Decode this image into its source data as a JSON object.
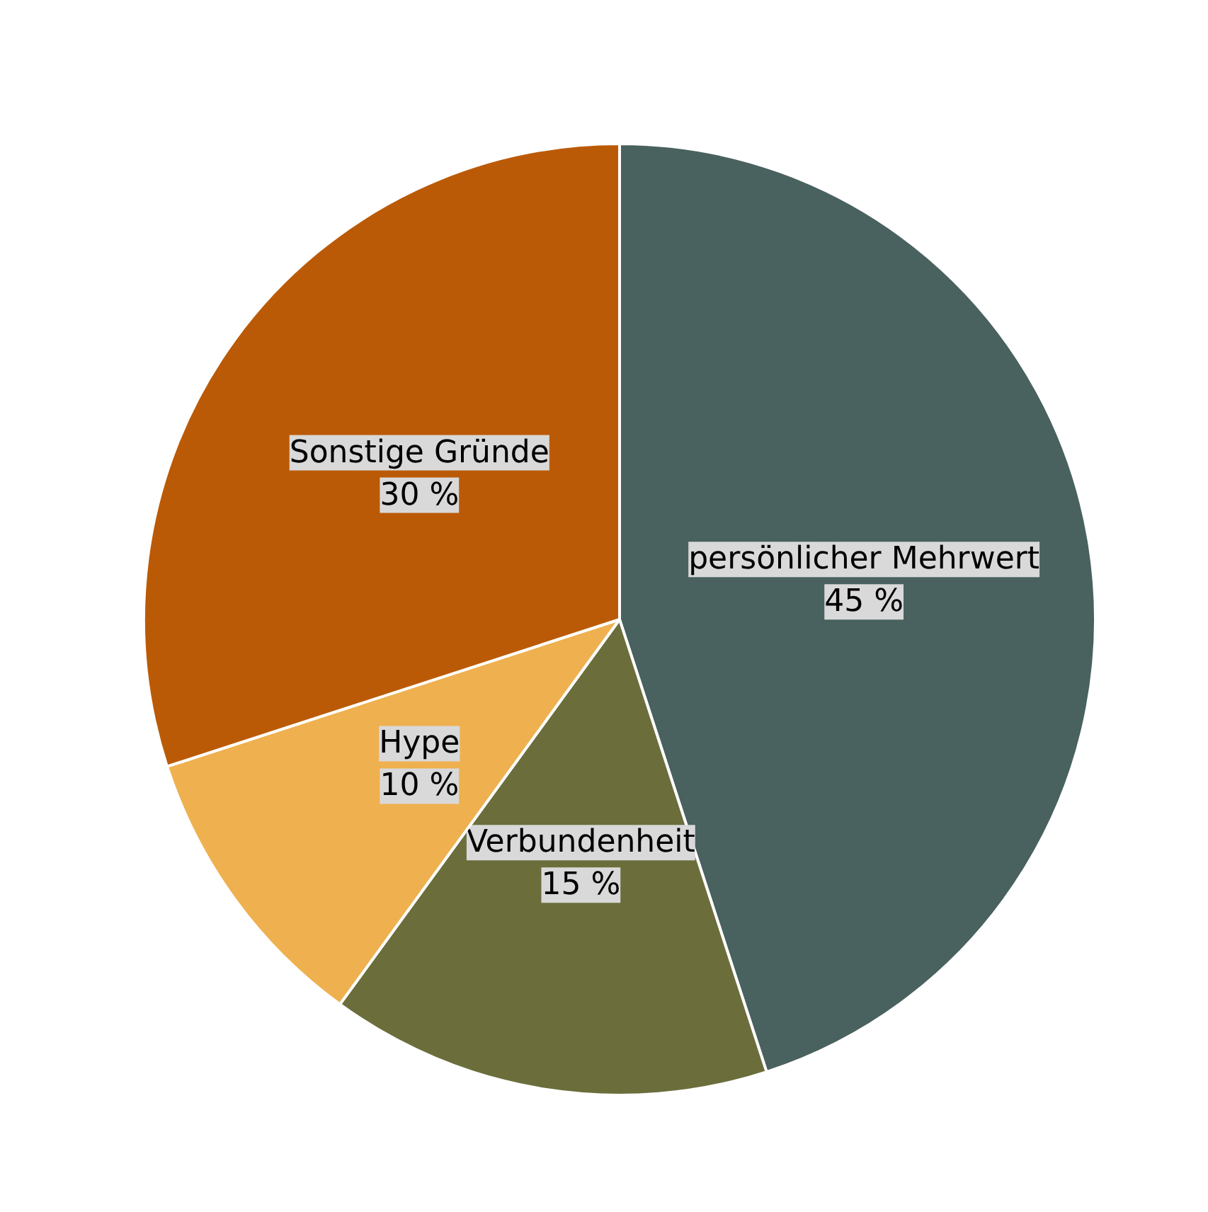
{
  "chart_data": {
    "type": "pie",
    "categories": [
      "persönlicher Mehrwert",
      "Verbundenheit",
      "Hype",
      "Sonstige Gründe"
    ],
    "values": [
      45,
      15,
      10,
      30
    ],
    "colors": [
      "#49615f",
      "#6b6e3b",
      "#efb04f",
      "#bb5a06"
    ],
    "value_labels": [
      "45 %",
      "15 %",
      "10 %",
      "30 %"
    ]
  }
}
